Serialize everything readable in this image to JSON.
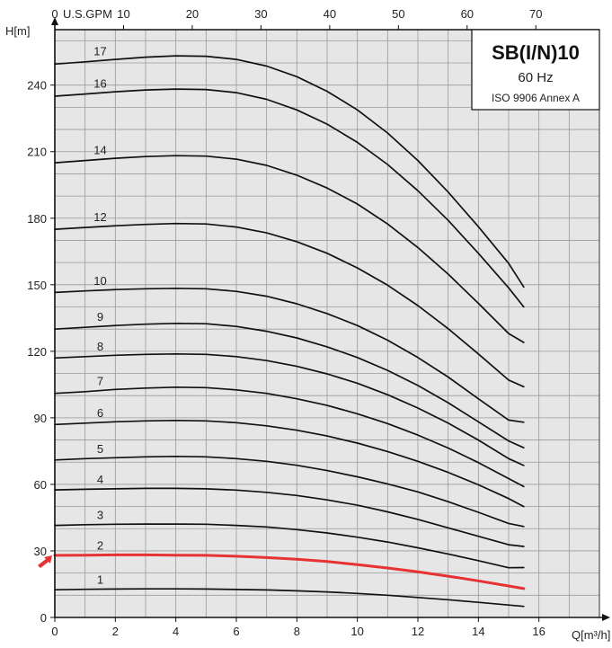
{
  "chart_data": {
    "type": "line",
    "title": "SB(I/N)10",
    "subtitle": "60 Hz",
    "standard": "ISO 9906 Annex A",
    "xlabel": "Q[m³/h]",
    "ylabel": "H[m]",
    "x2label": "U.S.GPM",
    "xlim": [
      0,
      18
    ],
    "ylim": [
      0,
      265
    ],
    "x2lim": [
      0,
      79.25
    ],
    "xticks": [
      0,
      2,
      4,
      6,
      8,
      10,
      12,
      14,
      16
    ],
    "yticks": [
      0,
      30,
      60,
      90,
      120,
      150,
      180,
      210,
      240
    ],
    "x2ticks": [
      0,
      10,
      20,
      30,
      40,
      50,
      60,
      70
    ],
    "grid": true,
    "highlight_color": "#e63232",
    "curve_color": "#111111",
    "x": [
      0,
      1,
      2,
      3,
      4,
      5,
      6,
      7,
      8,
      9,
      10,
      11,
      12,
      13,
      14,
      15,
      15.5
    ],
    "series": [
      {
        "name": "1",
        "values": [
          12.5,
          12.7,
          12.8,
          12.9,
          12.9,
          12.8,
          12.6,
          12.4,
          12.0,
          11.5,
          10.8,
          10.0,
          9.0,
          8.0,
          6.8,
          5.6,
          5.0
        ]
      },
      {
        "name": "2",
        "values": [
          28,
          28.1,
          28.2,
          28.2,
          28.1,
          28.0,
          27.6,
          27.0,
          26.2,
          25.2,
          23.8,
          22.3,
          20.6,
          18.6,
          16.5,
          14.2,
          13
        ]
      },
      {
        "name": "3",
        "values": [
          41.5,
          41.8,
          42.0,
          42.1,
          42.1,
          42.0,
          41.5,
          40.8,
          39.6,
          38.1,
          36.2,
          34.0,
          31.4,
          28.6,
          25.6,
          22.4,
          22.5
        ]
      },
      {
        "name": "4",
        "values": [
          57.5,
          57.8,
          58.0,
          58.2,
          58.2,
          58.0,
          57.4,
          56.4,
          55.0,
          53.0,
          50.6,
          47.6,
          44.2,
          40.4,
          36.6,
          32.8,
          32
        ]
      },
      {
        "name": "5",
        "values": [
          71,
          71.6,
          72.0,
          72.4,
          72.6,
          72.4,
          71.6,
          70.4,
          68.6,
          66.2,
          63.4,
          60.2,
          56.6,
          52.2,
          47.4,
          42.4,
          41
        ]
      },
      {
        "name": "6",
        "values": [
          87,
          87.6,
          88.2,
          88.6,
          88.8,
          88.6,
          87.8,
          86.4,
          84.4,
          81.8,
          78.6,
          74.8,
          70.4,
          65.4,
          59.8,
          53.6,
          50
        ]
      },
      {
        "name": "7",
        "values": [
          101,
          101.8,
          102.8,
          103.4,
          103.8,
          103.6,
          102.6,
          101.0,
          98.6,
          95.6,
          91.8,
          87.4,
          82.2,
          76.4,
          69.8,
          62.6,
          59
        ]
      },
      {
        "name": "8",
        "values": [
          117,
          117.6,
          118.2,
          118.6,
          118.8,
          118.6,
          117.6,
          115.8,
          113.2,
          109.8,
          105.6,
          100.4,
          94.4,
          87.6,
          80.0,
          71.6,
          68.5
        ]
      },
      {
        "name": "9",
        "values": [
          130,
          130.8,
          131.6,
          132.2,
          132.6,
          132.4,
          131.2,
          129.0,
          126.0,
          122.0,
          117.2,
          111.4,
          104.6,
          96.8,
          88.2,
          79.6,
          76.5
        ]
      },
      {
        "name": "10",
        "values": [
          146.5,
          147.2,
          147.8,
          148.2,
          148.4,
          148.2,
          147.0,
          144.8,
          141.4,
          137.0,
          131.6,
          125.0,
          117.2,
          108.4,
          98.6,
          89.0,
          88
        ]
      },
      {
        "name": "12",
        "values": [
          175,
          175.8,
          176.6,
          177.2,
          177.6,
          177.4,
          176.0,
          173.4,
          169.4,
          164.2,
          157.6,
          149.8,
          140.6,
          130.2,
          118.8,
          107.0,
          104
        ]
      },
      {
        "name": "14",
        "values": [
          205,
          206.0,
          207.0,
          207.8,
          208.2,
          208.0,
          206.6,
          203.8,
          199.4,
          193.6,
          186.4,
          177.4,
          166.8,
          154.8,
          141.6,
          128.0,
          124
        ]
      },
      {
        "name": "16",
        "values": [
          235,
          236.0,
          237.0,
          237.8,
          238.2,
          238.0,
          236.6,
          233.6,
          228.8,
          222.4,
          214.2,
          204.2,
          192.4,
          179.0,
          164.2,
          148.6,
          140
        ]
      },
      {
        "name": "17",
        "values": [
          249.5,
          250.5,
          251.6,
          252.6,
          253.2,
          253.0,
          251.6,
          248.6,
          243.8,
          237.2,
          228.8,
          218.4,
          206.0,
          191.8,
          176.2,
          159.6,
          149
        ]
      }
    ]
  }
}
